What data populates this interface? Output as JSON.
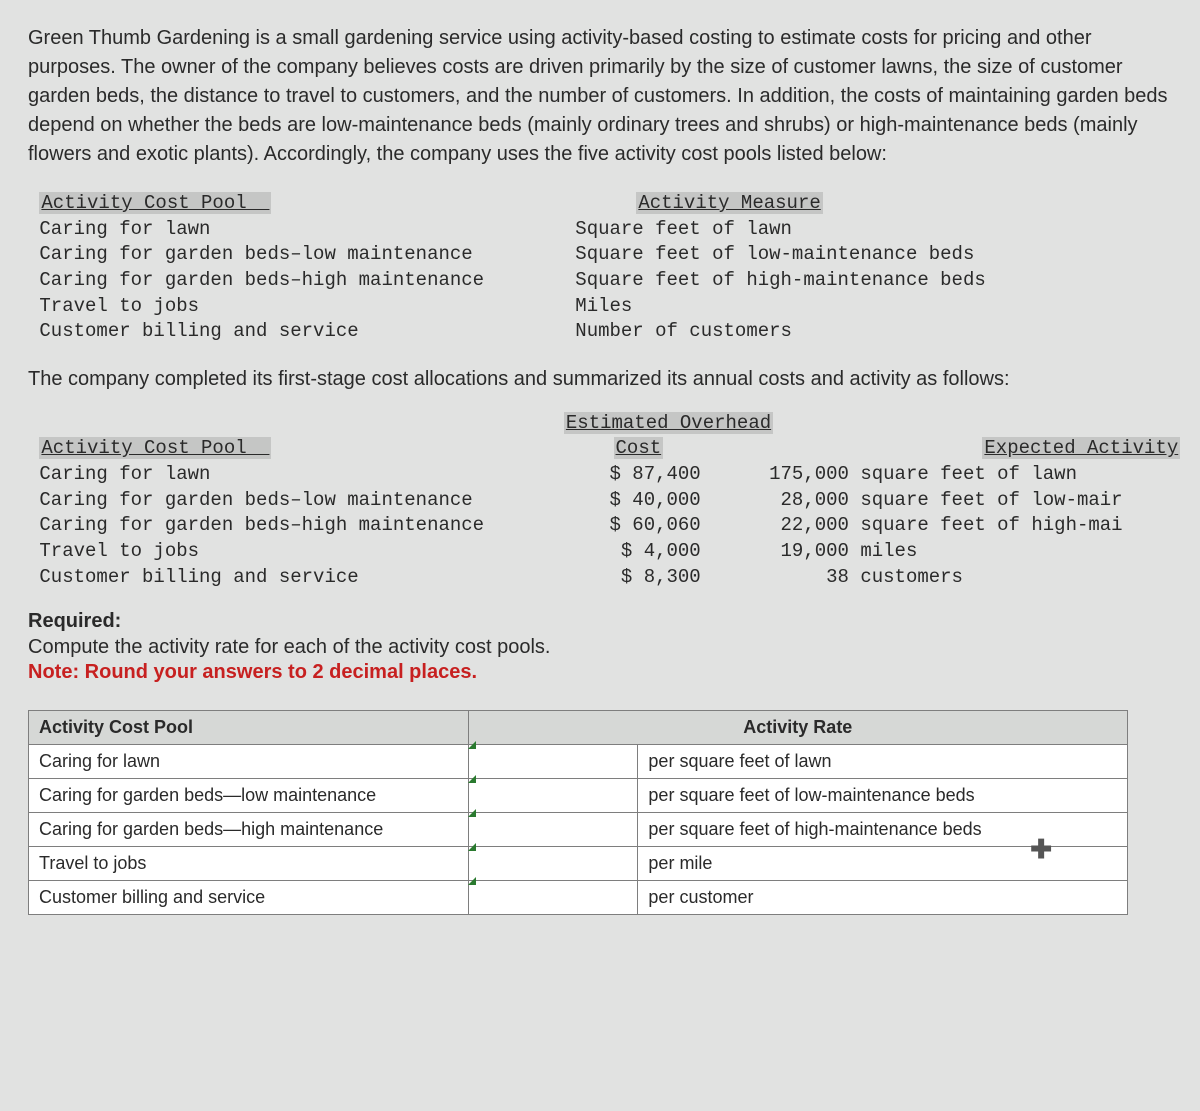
{
  "intro": "Green Thumb Gardening is a small gardening service using activity-based costing to estimate costs for pricing and other purposes. The owner of the company believes costs are driven primarily by the size of customer lawns, the size of customer garden beds, the distance to travel to customers, and the number of customers. In addition, the costs of maintaining garden beds depend on whether the beds are low-maintenance beds (mainly ordinary trees and shrubs) or high-maintenance beds (mainly flowers and exotic plants). Accordingly, the company uses the five activity cost pools listed below:",
  "t1": {
    "h_pool": "Activity Cost Pool",
    "h_measure": "Activity Measure",
    "rows": [
      {
        "pool": "Caring for lawn",
        "measure": "Square feet of lawn"
      },
      {
        "pool": "Caring for garden beds–low maintenance",
        "measure": "Square feet of low-maintenance beds"
      },
      {
        "pool": "Caring for garden beds–high maintenance",
        "measure": "Square feet of high-maintenance beds"
      },
      {
        "pool": "Travel to jobs",
        "measure": "Miles"
      },
      {
        "pool": "Customer billing and service",
        "measure": "Number of customers"
      }
    ]
  },
  "mid": "The company completed its first-stage cost allocations and summarized its annual costs and activity as follows:",
  "t2": {
    "h_pool": "Activity Cost Pool",
    "h_cost_top": "Estimated Overhead",
    "h_cost": "Cost",
    "h_activity": "Expected Activity",
    "rows": [
      {
        "pool": "Caring for lawn",
        "cost": "$ 87,400",
        "qty": "175,000",
        "unit": "square feet of lawn"
      },
      {
        "pool": "Caring for garden beds–low maintenance",
        "cost": "$ 40,000",
        "qty": "28,000",
        "unit": "square feet of low-mair"
      },
      {
        "pool": "Caring for garden beds–high maintenance",
        "cost": "$ 60,060",
        "qty": "22,000",
        "unit": "square feet of high-mai"
      },
      {
        "pool": "Travel to jobs",
        "cost": "$ 4,000",
        "qty": "19,000",
        "unit": "miles"
      },
      {
        "pool": "Customer billing and service",
        "cost": "$ 8,300",
        "qty": "38",
        "unit": "customers"
      }
    ]
  },
  "req": {
    "label": "Required:",
    "text": "Compute the activity rate for each of the activity cost pools.",
    "note": "Note: Round your answers to 2 decimal places."
  },
  "ans": {
    "h_pool": "Activity Cost Pool",
    "h_rate": "Activity Rate",
    "rows": [
      {
        "pool": "Caring for lawn",
        "unit": "per square feet of lawn"
      },
      {
        "pool": "Caring for garden beds—low maintenance",
        "unit": "per square feet of low-maintenance beds"
      },
      {
        "pool": "Caring for garden beds—high maintenance",
        "unit": "per square feet of high-maintenance beds"
      },
      {
        "pool": "Travel to jobs",
        "unit": "per mile"
      },
      {
        "pool": "Customer billing and service",
        "unit": "per customer"
      }
    ]
  },
  "colors": {
    "background": "#e1e2e1",
    "header_highlight": "#c5c6c5",
    "table_header": "#d6d8d6",
    "table_border": "#7e7e7e",
    "note_red": "#c72020",
    "input_marker": "#2a7a2f"
  }
}
